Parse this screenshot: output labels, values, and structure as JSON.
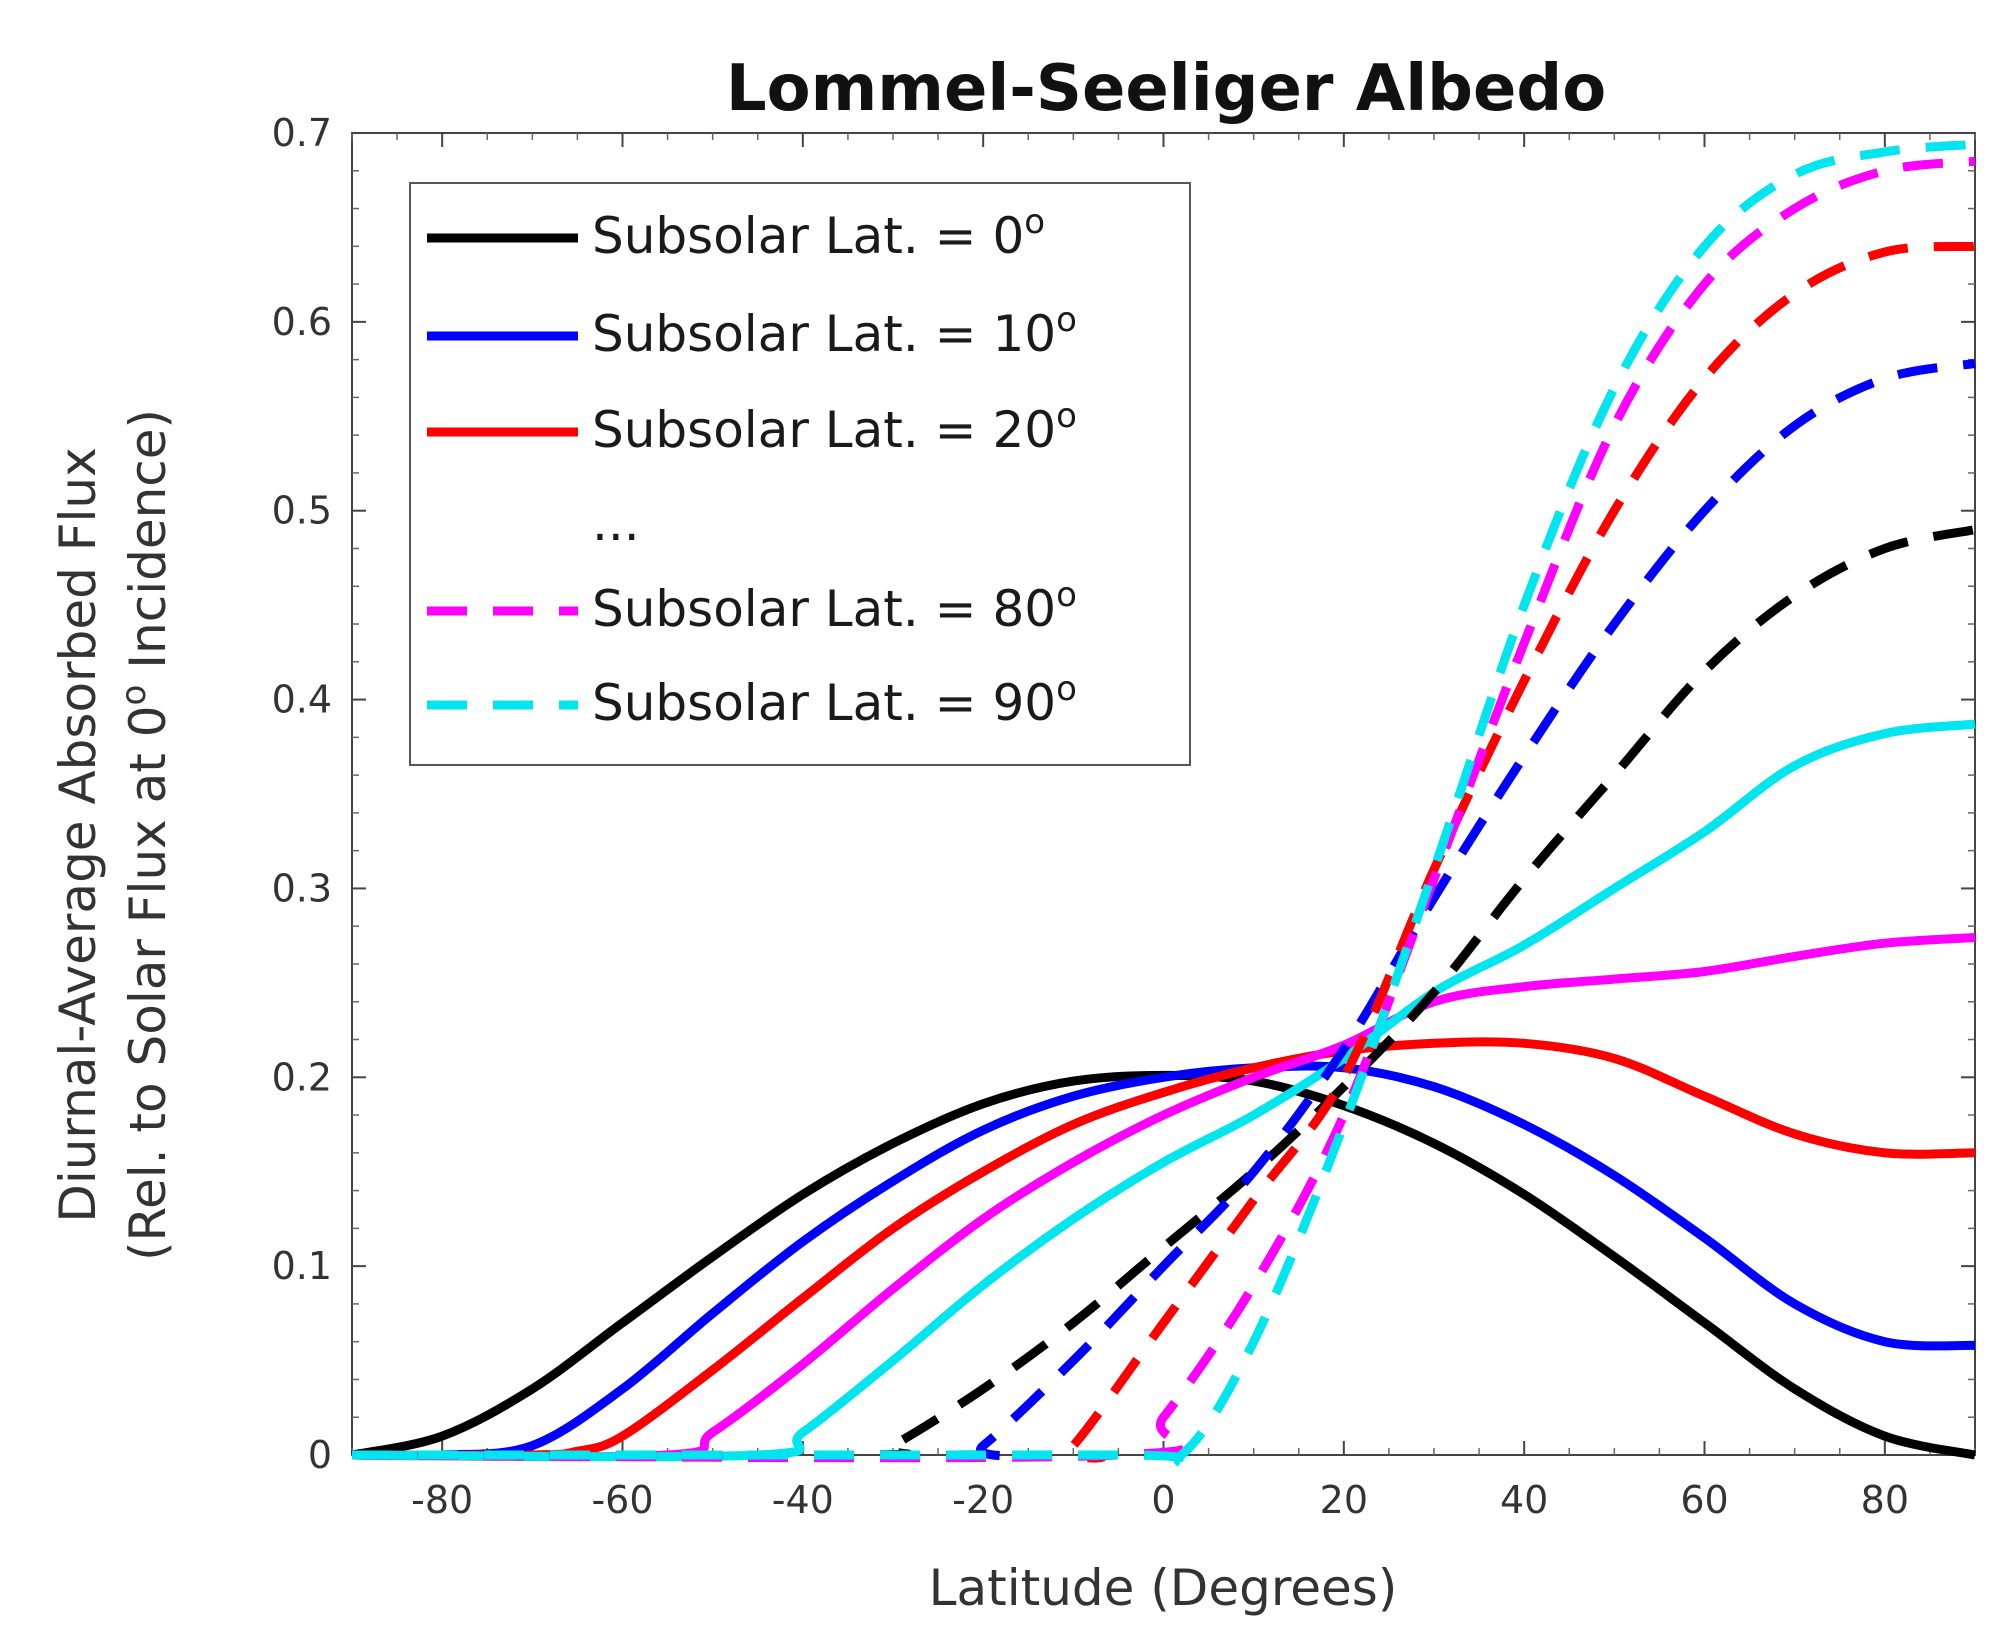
{
  "chart_data": {
    "type": "line",
    "title": "Lommel-Seeliger Albedo",
    "xlabel": "Latitude (Degrees)",
    "ylabel_line1": "Diurnal-Average Absorbed Flux",
    "ylabel_line2_prefix": "(Rel. to Solar Flux at 0",
    "ylabel_line2_sup": "o",
    "ylabel_line2_suffix": " Incidence)",
    "xlim": [
      -90,
      90
    ],
    "ylim": [
      0,
      0.7
    ],
    "xticks": [
      -80,
      -60,
      -40,
      -20,
      0,
      20,
      40,
      60,
      80
    ],
    "yticks": [
      0,
      0.1,
      0.2,
      0.3,
      0.4,
      0.5,
      0.6,
      0.7
    ],
    "grid": false,
    "legend_position": "top-left",
    "legend": [
      {
        "label": "Subsolar Lat. = 0",
        "sup": "o",
        "color": "#000000",
        "dash": false
      },
      {
        "label": "Subsolar Lat. = 10",
        "sup": "o",
        "color": "#0000ff",
        "dash": false
      },
      {
        "label": "Subsolar Lat. = 20",
        "sup": "o",
        "color": "#ff0000",
        "dash": false
      },
      {
        "label": "...",
        "sup": "",
        "color": "",
        "dash": false
      },
      {
        "label": "Subsolar Lat. = 80",
        "sup": "o",
        "color": "#ff00ff",
        "dash": true
      },
      {
        "label": "Subsolar Lat. = 90",
        "sup": "o",
        "color": "#00e5ee",
        "dash": true
      }
    ],
    "series": [
      {
        "color": "#000000",
        "dash": false,
        "x": [
          -90,
          -80,
          -70,
          -60,
          -50,
          -40,
          -30,
          -20,
          -10,
          0,
          10,
          20,
          30,
          40,
          50,
          60,
          70,
          80,
          90
        ],
        "y": [
          0,
          0.01,
          0.035,
          0.07,
          0.105,
          0.138,
          0.165,
          0.186,
          0.198,
          0.201,
          0.198,
          0.185,
          0.165,
          0.138,
          0.105,
          0.07,
          0.035,
          0.01,
          0
        ]
      },
      {
        "color": "#0000ff",
        "dash": false,
        "x": [
          -90,
          -80,
          -70,
          -60,
          -50,
          -40,
          -30,
          -20,
          -10,
          0,
          10,
          20,
          30,
          40,
          50,
          60,
          70,
          80,
          90
        ],
        "y": [
          0,
          0,
          0.005,
          0.035,
          0.075,
          0.113,
          0.145,
          0.172,
          0.19,
          0.2,
          0.205,
          0.205,
          0.195,
          0.175,
          0.148,
          0.115,
          0.08,
          0.06,
          0.058
        ]
      },
      {
        "color": "#ff0000",
        "dash": false,
        "x": [
          -90,
          -70,
          -65,
          -60,
          -50,
          -40,
          -30,
          -20,
          -10,
          0,
          10,
          20,
          30,
          40,
          50,
          60,
          70,
          80,
          90
        ],
        "y": [
          0,
          0,
          0.002,
          0.01,
          0.045,
          0.083,
          0.12,
          0.15,
          0.175,
          0.192,
          0.205,
          0.214,
          0.218,
          0.218,
          0.21,
          0.19,
          0.17,
          0.16,
          0.16
        ]
      },
      {
        "color": "#ff00ff",
        "dash": false,
        "x": [
          -90,
          -55,
          -50,
          -40,
          -30,
          -20,
          -10,
          0,
          10,
          20,
          30,
          40,
          50,
          60,
          70,
          80,
          90
        ],
        "y": [
          0,
          0,
          0.012,
          0.048,
          0.088,
          0.125,
          0.155,
          0.18,
          0.2,
          0.217,
          0.24,
          0.248,
          0.252,
          0.256,
          0.264,
          0.271,
          0.274
        ]
      },
      {
        "color": "#00e5ee",
        "dash": false,
        "x": [
          -90,
          -45,
          -40,
          -30,
          -20,
          -10,
          0,
          10,
          20,
          30,
          40,
          50,
          60,
          70,
          80,
          90
        ],
        "y": [
          0,
          0,
          0.012,
          0.05,
          0.09,
          0.125,
          0.155,
          0.18,
          0.21,
          0.245,
          0.27,
          0.3,
          0.33,
          0.365,
          0.382,
          0.387
        ]
      },
      {
        "color": "#000000",
        "dash": true,
        "x": [
          -90,
          -33,
          -30,
          -20,
          -10,
          0,
          10,
          20,
          30,
          40,
          50,
          60,
          70,
          80,
          90
        ],
        "y": [
          0,
          0,
          0.005,
          0.035,
          0.07,
          0.11,
          0.15,
          0.195,
          0.245,
          0.305,
          0.36,
          0.415,
          0.455,
          0.48,
          0.49
        ]
      },
      {
        "color": "#0000ff",
        "dash": true,
        "x": [
          -90,
          -23,
          -20,
          -10,
          0,
          10,
          20,
          30,
          40,
          50,
          60,
          70,
          80,
          90
        ],
        "y": [
          0,
          0,
          0.005,
          0.05,
          0.1,
          0.15,
          0.215,
          0.295,
          0.37,
          0.44,
          0.5,
          0.545,
          0.57,
          0.578
        ]
      },
      {
        "color": "#ff0000",
        "dash": true,
        "x": [
          -90,
          -13,
          -10,
          0,
          10,
          20,
          30,
          40,
          50,
          60,
          70,
          80,
          90
        ],
        "y": [
          0,
          0,
          0.005,
          0.07,
          0.135,
          0.2,
          0.31,
          0.41,
          0.5,
          0.57,
          0.615,
          0.637,
          0.64
        ]
      },
      {
        "color": "#ff00ff",
        "dash": true,
        "x": [
          -90,
          -5,
          0,
          10,
          20,
          30,
          40,
          50,
          60,
          70,
          80,
          90
        ],
        "y": [
          0,
          0,
          0.02,
          0.09,
          0.18,
          0.305,
          0.43,
          0.545,
          0.62,
          0.66,
          0.68,
          0.685
        ]
      },
      {
        "color": "#00e5ee",
        "dash": true,
        "x": [
          -90,
          -5,
          2,
          10,
          20,
          30,
          40,
          50,
          60,
          70,
          80,
          90
        ],
        "y": [
          0,
          0,
          0,
          0.06,
          0.175,
          0.31,
          0.45,
          0.565,
          0.64,
          0.678,
          0.69,
          0.694
        ]
      }
    ]
  }
}
